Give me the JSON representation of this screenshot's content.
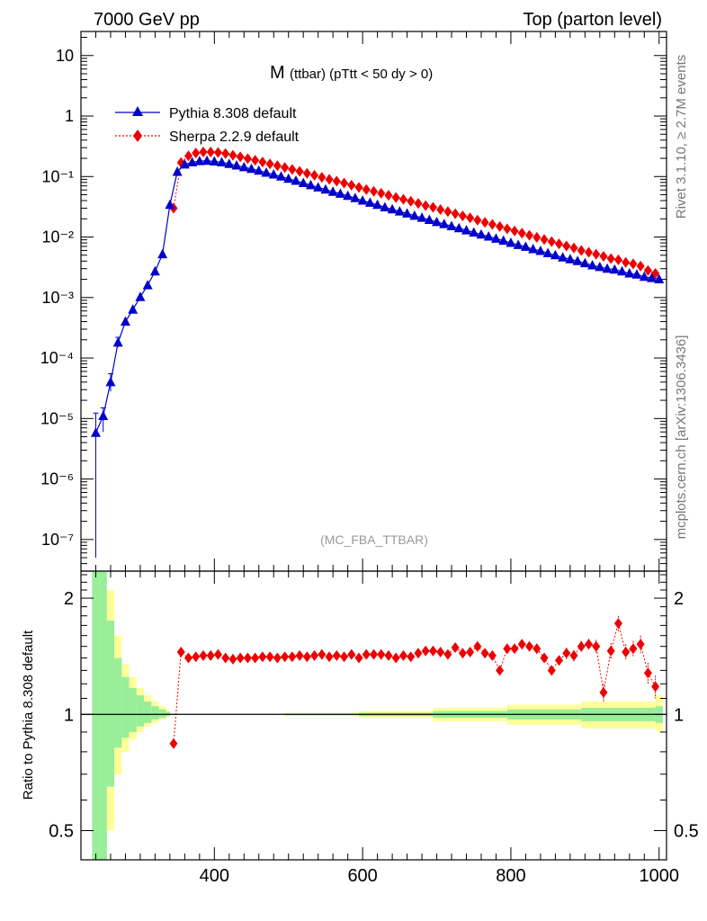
{
  "header": {
    "left": "7000 GeV pp",
    "right": "Top (parton level)"
  },
  "side": {
    "rivet": "Rivet 3.1.10, ≥ 2.7M events",
    "mcplots": "mcplots.cern.ch [arXiv:1306.3436]"
  },
  "colors": {
    "pythia": "#0000cc",
    "sherpa": "#ee0000",
    "band_inner": "#99ee99",
    "band_outer": "#ffff99"
  },
  "chart_data": [
    {
      "type": "line",
      "title": "M",
      "title_sub": "(ttbar) (pTtt < 50 dy > 0)",
      "tag": "(MC_FBA_TTBAR)",
      "xlabel": "",
      "ylabel": "",
      "xlim": [
        220,
        1010
      ],
      "ylim": [
        3e-08,
        25
      ],
      "yscale": "log",
      "ytick_labels": {
        "1e-7": "10⁻⁷",
        "1e-6": "10⁻⁶",
        "1e-5": "10⁻⁵",
        "1e-4": "10⁻⁴",
        "1e-3": "10⁻³",
        "1e-2": "10⁻²",
        "1e-1": "10⁻¹",
        "1": "1",
        "10": "10"
      },
      "legend_position": "top-left",
      "series": [
        {
          "name": "Pythia 8.308 default",
          "marker": "triangle",
          "x": [
            240,
            250,
            260,
            270,
            280,
            290,
            300,
            310,
            320,
            330,
            340,
            350,
            360,
            370,
            380,
            390,
            400,
            410,
            420,
            430,
            440,
            450,
            460,
            470,
            480,
            490,
            500,
            510,
            520,
            530,
            540,
            550,
            560,
            570,
            580,
            590,
            600,
            610,
            620,
            630,
            640,
            650,
            660,
            670,
            680,
            690,
            700,
            710,
            720,
            730,
            740,
            750,
            760,
            770,
            780,
            790,
            800,
            810,
            820,
            830,
            840,
            850,
            860,
            870,
            880,
            890,
            900,
            910,
            920,
            930,
            940,
            950,
            960,
            970,
            980,
            990,
            1000
          ],
          "y": [
            5.8e-06,
            1.1e-05,
            4e-05,
            0.00018,
            0.0004,
            0.00063,
            0.00102,
            0.0016,
            0.0027,
            0.0052,
            0.034,
            0.12,
            0.158,
            0.172,
            0.18,
            0.182,
            0.178,
            0.172,
            0.162,
            0.152,
            0.143,
            0.134,
            0.125,
            0.116,
            0.108,
            0.1,
            0.092,
            0.085,
            0.078,
            0.072,
            0.066,
            0.061,
            0.056,
            0.052,
            0.048,
            0.044,
            0.04,
            0.037,
            0.034,
            0.031,
            0.0287,
            0.0265,
            0.0245,
            0.0225,
            0.0208,
            0.0192,
            0.0177,
            0.0164,
            0.0151,
            0.014,
            0.0129,
            0.0119,
            0.011,
            0.0102,
            0.0094,
            0.0087,
            0.008,
            0.0074,
            0.0069,
            0.0063,
            0.0059,
            0.0054,
            0.005,
            0.0046,
            0.0043,
            0.004,
            0.0037,
            0.0034,
            0.0032,
            0.003,
            0.0029,
            0.0027,
            0.0025,
            0.0024,
            0.0022,
            0.0021,
            0.002
          ],
          "yerr": [
            [
              5.75e-06,
              6.5e-06
            ],
            [
              5e-06,
              4e-06
            ],
            [
              1.2e-05,
              1.5e-05
            ],
            [
              3e-05,
              4e-05
            ],
            [
              0,
              0
            ],
            [
              0,
              0
            ],
            [
              0,
              0
            ],
            [
              0,
              0
            ],
            [
              0,
              0
            ],
            [
              0,
              0
            ],
            [
              0,
              0
            ],
            [
              0,
              0
            ],
            [
              0,
              0
            ],
            [
              0,
              0
            ],
            [
              0,
              0
            ],
            [
              0,
              0
            ],
            [
              0,
              0
            ],
            [
              0,
              0
            ],
            [
              0,
              0
            ],
            [
              0,
              0
            ],
            [
              0,
              0
            ],
            [
              0,
              0
            ],
            [
              0,
              0
            ],
            [
              0,
              0
            ],
            [
              0,
              0
            ],
            [
              0,
              0
            ],
            [
              0,
              0
            ],
            [
              0,
              0
            ],
            [
              0,
              0
            ],
            [
              0,
              0
            ],
            [
              0,
              0
            ],
            [
              0,
              0
            ],
            [
              0,
              0
            ],
            [
              0,
              0
            ],
            [
              0,
              0
            ],
            [
              0,
              0
            ],
            [
              0,
              0
            ],
            [
              0,
              0
            ],
            [
              0,
              0
            ],
            [
              0,
              0
            ],
            [
              0,
              0
            ],
            [
              0,
              0
            ],
            [
              0,
              0
            ],
            [
              0,
              0
            ],
            [
              0,
              0
            ],
            [
              0,
              0
            ],
            [
              0,
              0
            ],
            [
              0,
              0
            ],
            [
              0,
              0
            ],
            [
              0,
              0
            ],
            [
              0,
              0
            ],
            [
              0,
              0
            ],
            [
              0,
              0
            ],
            [
              0,
              0
            ],
            [
              0,
              0
            ],
            [
              0,
              0
            ],
            [
              0,
              0
            ],
            [
              0,
              0
            ],
            [
              0,
              0
            ],
            [
              0,
              0
            ],
            [
              0,
              0
            ],
            [
              0,
              0
            ],
            [
              0,
              0
            ],
            [
              0,
              0
            ],
            [
              0,
              0
            ],
            [
              0,
              0
            ],
            [
              0,
              0
            ],
            [
              0,
              0
            ],
            [
              0,
              0
            ],
            [
              0,
              0
            ],
            [
              0,
              0
            ],
            [
              0,
              0
            ],
            [
              0,
              0
            ],
            [
              0,
              0
            ],
            [
              0,
              0
            ],
            [
              0,
              0
            ],
            [
              0,
              0
            ]
          ]
        },
        {
          "name": "Sherpa 2.2.9 default",
          "marker": "diamond",
          "x": [
            345,
            355,
            365,
            375,
            385,
            395,
            405,
            415,
            425,
            435,
            445,
            455,
            465,
            475,
            485,
            495,
            505,
            515,
            525,
            535,
            545,
            555,
            565,
            575,
            585,
            595,
            605,
            615,
            625,
            635,
            645,
            655,
            665,
            675,
            685,
            695,
            705,
            715,
            725,
            735,
            745,
            755,
            765,
            775,
            785,
            795,
            805,
            815,
            825,
            835,
            845,
            855,
            865,
            875,
            885,
            895,
            905,
            915,
            925,
            935,
            945,
            955,
            965,
            975,
            985,
            995
          ],
          "y": [
            0.03,
            0.17,
            0.22,
            0.245,
            0.255,
            0.255,
            0.25,
            0.24,
            0.225,
            0.212,
            0.198,
            0.186,
            0.174,
            0.162,
            0.151,
            0.141,
            0.131,
            0.122,
            0.113,
            0.105,
            0.097,
            0.09,
            0.084,
            0.078,
            0.072,
            0.066,
            0.061,
            0.057,
            0.053,
            0.049,
            0.045,
            0.042,
            0.039,
            0.036,
            0.033,
            0.031,
            0.0285,
            0.0263,
            0.0243,
            0.0224,
            0.0207,
            0.019,
            0.0175,
            0.0162,
            0.0149,
            0.0137,
            0.0126,
            0.0116,
            0.0107,
            0.0099,
            0.0091,
            0.0084,
            0.0077,
            0.0071,
            0.0066,
            0.006,
            0.0056,
            0.0052,
            0.0048,
            0.0044,
            0.0042,
            0.0038,
            0.0036,
            0.0033,
            0.0028,
            0.0025
          ]
        }
      ]
    },
    {
      "type": "line",
      "title": "",
      "xlabel": "",
      "ylabel": "Ratio to Pythia 8.308 default",
      "xlim": [
        220,
        1010
      ],
      "ylim": [
        0.42,
        2.35
      ],
      "yscale": "log",
      "yticks_major": [
        0.5,
        1,
        2
      ],
      "xticks_major": [
        400,
        600,
        800,
        1000
      ],
      "reference_line": 1,
      "band_inner": {
        "x": [
          240,
          250,
          260,
          270,
          280,
          290,
          300,
          310,
          320,
          330,
          340,
          345,
          350,
          400,
          500,
          600,
          700,
          800,
          900,
          1000
        ],
        "lo": [
          0.3,
          0.4,
          0.65,
          0.82,
          0.87,
          0.9,
          0.93,
          0.95,
          0.97,
          0.98,
          0.99,
          1.0,
          1.0,
          1.0,
          0.995,
          0.99,
          0.98,
          0.97,
          0.96,
          0.95
        ],
        "hi": [
          3.3,
          2.5,
          1.75,
          1.4,
          1.25,
          1.17,
          1.12,
          1.08,
          1.05,
          1.03,
          1.015,
          1.0,
          1.0,
          1.0,
          1.005,
          1.01,
          1.02,
          1.03,
          1.04,
          1.05
        ]
      },
      "band_outer": {
        "x": [
          240,
          250,
          260,
          270,
          280,
          290,
          300,
          310,
          320,
          330,
          340,
          345,
          350,
          400,
          500,
          600,
          700,
          800,
          900,
          1000
        ],
        "lo": [
          0.1,
          0.2,
          0.5,
          0.7,
          0.8,
          0.86,
          0.9,
          0.93,
          0.95,
          0.97,
          0.985,
          1.0,
          1.0,
          1.0,
          0.99,
          0.98,
          0.96,
          0.94,
          0.92,
          0.9
        ],
        "hi": [
          5.0,
          3.5,
          2.1,
          1.6,
          1.35,
          1.25,
          1.17,
          1.12,
          1.08,
          1.05,
          1.025,
          1.0,
          1.0,
          1.0,
          1.01,
          1.02,
          1.04,
          1.06,
          1.08,
          1.12
        ]
      },
      "series": [
        {
          "name": "Sherpa 2.2.9 default",
          "x": [
            345,
            355,
            365,
            375,
            385,
            395,
            405,
            415,
            425,
            435,
            445,
            455,
            465,
            475,
            485,
            495,
            505,
            515,
            525,
            535,
            545,
            555,
            565,
            575,
            585,
            595,
            605,
            615,
            625,
            635,
            645,
            655,
            665,
            675,
            685,
            695,
            705,
            715,
            725,
            735,
            745,
            755,
            765,
            775,
            785,
            795,
            805,
            815,
            825,
            835,
            845,
            855,
            865,
            875,
            885,
            895,
            905,
            915,
            925,
            935,
            945,
            955,
            965,
            975,
            985,
            995
          ],
          "y": [
            0.84,
            1.45,
            1.4,
            1.41,
            1.42,
            1.42,
            1.43,
            1.4,
            1.39,
            1.4,
            1.4,
            1.4,
            1.41,
            1.41,
            1.4,
            1.41,
            1.41,
            1.42,
            1.41,
            1.42,
            1.43,
            1.41,
            1.42,
            1.41,
            1.43,
            1.4,
            1.43,
            1.43,
            1.43,
            1.42,
            1.4,
            1.42,
            1.41,
            1.44,
            1.46,
            1.46,
            1.45,
            1.43,
            1.49,
            1.44,
            1.45,
            1.5,
            1.44,
            1.42,
            1.3,
            1.48,
            1.48,
            1.52,
            1.5,
            1.48,
            1.4,
            1.3,
            1.38,
            1.44,
            1.42,
            1.5,
            1.52,
            1.5,
            1.14,
            1.46,
            1.72,
            1.45,
            1.48,
            1.52,
            1.28,
            1.18
          ],
          "yerr": [
            0.01,
            0.02,
            0.01,
            0.01,
            0.01,
            0.01,
            0.01,
            0.01,
            0.01,
            0.01,
            0.01,
            0.01,
            0.01,
            0.01,
            0.01,
            0.01,
            0.01,
            0.01,
            0.01,
            0.01,
            0.01,
            0.01,
            0.01,
            0.01,
            0.01,
            0.01,
            0.01,
            0.01,
            0.01,
            0.01,
            0.01,
            0.015,
            0.015,
            0.015,
            0.015,
            0.015,
            0.015,
            0.02,
            0.02,
            0.02,
            0.02,
            0.02,
            0.02,
            0.03,
            0.03,
            0.03,
            0.03,
            0.03,
            0.03,
            0.04,
            0.04,
            0.04,
            0.04,
            0.05,
            0.05,
            0.05,
            0.05,
            0.06,
            0.06,
            0.07,
            0.08,
            0.07,
            0.07,
            0.08,
            0.08,
            0.08
          ]
        }
      ]
    }
  ]
}
